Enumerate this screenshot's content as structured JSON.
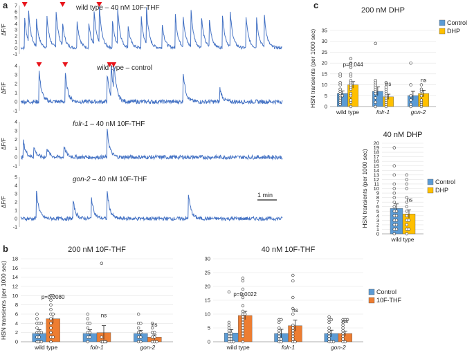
{
  "panel_labels": {
    "a": "a",
    "b": "b",
    "c": "c"
  },
  "traces": {
    "ylabel": "ΔF/F",
    "scale_bar": "1 min",
    "rows": [
      {
        "label": "wild type – 40 nM 10F-THF",
        "ticks": [
          "7",
          "6",
          "5",
          "4",
          "3",
          "2",
          "1",
          "0",
          "-1"
        ],
        "ymin": -1,
        "ymax": 7,
        "peaks": [
          [
            0.015,
            5
          ],
          [
            0.03,
            5
          ],
          [
            0.06,
            4.5
          ],
          [
            0.1,
            5
          ],
          [
            0.135,
            6
          ],
          [
            0.16,
            3.5
          ],
          [
            0.215,
            4.5
          ],
          [
            0.26,
            4
          ],
          [
            0.28,
            5.5
          ],
          [
            0.3,
            6
          ],
          [
            0.35,
            4.5
          ],
          [
            0.37,
            6
          ],
          [
            0.41,
            3.5
          ],
          [
            0.46,
            5
          ],
          [
            0.48,
            6
          ],
          [
            0.54,
            4
          ],
          [
            0.59,
            5.5
          ],
          [
            0.62,
            5
          ],
          [
            0.65,
            6
          ],
          [
            0.69,
            5
          ],
          [
            0.72,
            4.5
          ],
          [
            0.77,
            5.5
          ],
          [
            0.8,
            5.5
          ],
          [
            0.86,
            5
          ],
          [
            0.9,
            5
          ],
          [
            0.93,
            5
          ]
        ],
        "markers": [
          0.015,
          0.16,
          0.3
        ]
      },
      {
        "label": "wild type – control",
        "ticks": [
          "4",
          "3",
          "2",
          "1",
          "0",
          "-1"
        ],
        "ymin": -1,
        "ymax": 4,
        "peaks": [
          [
            0.07,
            3.4
          ],
          [
            0.17,
            3.2
          ],
          [
            0.33,
            3.0
          ],
          [
            0.345,
            3.3
          ],
          [
            0.355,
            3.1
          ],
          [
            0.62,
            3.3
          ],
          [
            0.76,
            1.5
          ]
        ],
        "markers": [
          0.07,
          0.17,
          0.34,
          0.355
        ]
      },
      {
        "label": "folr-1 – 40 nM 10F-THF",
        "italic_part": "folr-1",
        "ticks": [
          "4",
          "3",
          "2",
          "1",
          "0",
          "-1"
        ],
        "ymin": -1,
        "ymax": 4,
        "peaks": [
          [
            0.01,
            1.8
          ],
          [
            0.05,
            1.2
          ],
          [
            0.1,
            1.1
          ],
          [
            0.165,
            1.3
          ],
          [
            0.33,
            3.0
          ]
        ],
        "markers": []
      },
      {
        "label": "gon-2 – 40 nM 10F-THF",
        "italic_part": "gon-2",
        "ticks": [
          "5",
          "4",
          "3",
          "2",
          "1",
          "0",
          "-1"
        ],
        "ymin": -1,
        "ymax": 5,
        "peaks": [
          [
            0.06,
            3.4
          ],
          [
            0.2,
            2.1
          ],
          [
            0.27,
            2.5
          ],
          [
            0.33,
            3.3
          ],
          [
            0.64,
            3.0
          ]
        ],
        "markers": []
      }
    ]
  },
  "chart_data": [
    {
      "id": "b1",
      "type": "bar",
      "title": "200 nM 10F-THF",
      "ylabel": "HSN transients (per 1000 sec)",
      "ylim": [
        0,
        18
      ],
      "ticks": [
        0,
        2,
        4,
        6,
        8,
        10,
        12,
        14,
        16,
        18
      ],
      "categories": [
        "wild type",
        "folr-1",
        "gon-2"
      ],
      "series": [
        {
          "name": "Control",
          "values": [
            1.8,
            1.8,
            1.8
          ],
          "err": [
            0.8,
            0.8,
            0.7
          ]
        },
        {
          "name": "10F-THF",
          "values": [
            5.0,
            2.0,
            1.0
          ],
          "err": [
            1.0,
            1.5,
            0.5
          ]
        }
      ],
      "annotations": [
        "p=0.0080",
        "ns",
        "ns"
      ],
      "points": [
        [
          [
            0,
            0,
            0,
            0,
            1,
            1,
            2,
            2,
            2,
            3,
            4,
            4,
            4,
            5,
            6
          ],
          [
            0,
            1,
            1,
            2,
            3,
            4,
            5,
            6,
            6,
            7,
            8,
            9,
            10,
            10
          ]
        ],
        [
          [
            0,
            1,
            1,
            2,
            2,
            3,
            4,
            4,
            5,
            6
          ],
          [
            0,
            0,
            0,
            0,
            0,
            1,
            17
          ]
        ],
        [
          [
            0,
            0,
            1,
            1,
            2,
            2,
            3,
            4,
            4,
            6
          ],
          [
            0,
            0,
            0,
            1,
            1,
            2,
            2,
            3,
            4
          ]
        ]
      ]
    },
    {
      "id": "b2",
      "type": "bar",
      "title": "40 nM 10F-THF",
      "ylabel": "",
      "ylim": [
        0,
        30
      ],
      "ticks": [
        0,
        5,
        10,
        15,
        20,
        25,
        30
      ],
      "categories": [
        "wild type",
        "folr-1",
        "gon-2"
      ],
      "series": [
        {
          "name": "Control",
          "values": [
            3.2,
            3.0,
            3.0
          ],
          "err": [
            1.2,
            1.5,
            1.2
          ]
        },
        {
          "name": "10F-THF",
          "values": [
            9.5,
            5.8,
            3.0
          ],
          "err": [
            1.5,
            2.0,
            0.8
          ]
        }
      ],
      "annotations": [
        "p=0.0022",
        "ns",
        "ns"
      ],
      "legend": [
        "Control",
        "10F-THF"
      ],
      "points": [
        [
          [
            0,
            0,
            0,
            1,
            1,
            2,
            2,
            3,
            3,
            4,
            5,
            6,
            7,
            18
          ],
          [
            0,
            2,
            3,
            4,
            5,
            6,
            7,
            8,
            9,
            10,
            10,
            11,
            13,
            16,
            17,
            19,
            22,
            23
          ]
        ],
        [
          [
            0,
            0,
            1,
            1,
            2,
            3,
            4,
            5,
            7,
            8,
            8
          ],
          [
            0,
            0,
            1,
            2,
            3,
            4,
            5,
            6,
            10,
            12,
            16,
            22,
            24
          ]
        ],
        [
          [
            0,
            0,
            0,
            1,
            2,
            3,
            4,
            5,
            7,
            8,
            8,
            9
          ],
          [
            0,
            0,
            1,
            2,
            3,
            4,
            5,
            6,
            7,
            8,
            8,
            8
          ]
        ]
      ]
    },
    {
      "id": "c1",
      "type": "bar",
      "title": "200 nM DHP",
      "ylabel": "HSN transients (per 1000 sec)",
      "ylim": [
        0,
        35
      ],
      "ticks": [
        0,
        5,
        10,
        15,
        20,
        25,
        30,
        35
      ],
      "categories": [
        "wild type",
        "folr-1",
        "gon-2"
      ],
      "series": [
        {
          "name": "Control",
          "values": [
            6.0,
            7.0,
            5.0
          ],
          "err": [
            1.2,
            2.0,
            2.0
          ]
        },
        {
          "name": "DHP",
          "values": [
            10.0,
            4.5,
            6.0
          ],
          "err": [
            1.5,
            1.2,
            1.5
          ]
        }
      ],
      "annotations": [
        "p=0.044",
        "ns",
        "ns"
      ],
      "legend": [
        "Control",
        "DHP"
      ],
      "points": [
        [
          [
            1,
            2,
            3,
            4,
            5,
            5,
            6,
            7,
            8,
            10,
            11,
            14,
            15
          ],
          [
            0,
            2,
            3,
            5,
            6,
            8,
            9,
            10,
            11,
            12,
            14,
            15,
            18,
            20,
            22
          ]
        ],
        [
          [
            0,
            2,
            4,
            6,
            7,
            8,
            9,
            10,
            11,
            12,
            29
          ],
          [
            0,
            1,
            2,
            3,
            4,
            5,
            6,
            7,
            8,
            9,
            11
          ]
        ],
        [
          [
            0,
            1,
            3,
            5,
            10,
            20
          ],
          [
            0,
            1,
            2,
            3,
            5,
            7,
            8,
            10
          ]
        ]
      ]
    },
    {
      "id": "c2",
      "type": "bar",
      "title": "40 DHP",
      "ylabel": "HSN transients (per 1000 sec)",
      "ylim": [
        0,
        20
      ],
      "ticks": [
        0,
        1,
        2,
        3,
        4,
        5,
        6,
        7,
        8,
        9,
        10,
        11,
        12,
        13,
        14,
        15,
        16,
        17,
        18,
        19,
        20
      ],
      "categories": [
        "wild type"
      ],
      "series": [
        {
          "name": "Control",
          "values": [
            5.6
          ],
          "err": [
            1.0
          ]
        },
        {
          "name": "DHP",
          "values": [
            4.4
          ],
          "err": [
            0.9
          ]
        }
      ],
      "annotations": [
        "ns"
      ],
      "legend": [
        "Control",
        "DHP"
      ],
      "points": [
        [
          [
            0,
            1,
            1,
            2,
            2,
            3,
            3,
            4,
            4,
            5,
            5,
            6,
            7,
            8,
            9,
            10,
            11,
            13,
            15,
            19
          ]
        ],
        [
          [
            0,
            1,
            1,
            2,
            3,
            3,
            4,
            5,
            6,
            7,
            8,
            10,
            11,
            12,
            13
          ]
        ]
      ]
    }
  ],
  "colors": {
    "control": "#5b9bd5",
    "treatment_thf": "#ed7d31",
    "treatment_dhp": "#ffc000",
    "trace": "#4472c4",
    "marker": "#e8141b"
  }
}
